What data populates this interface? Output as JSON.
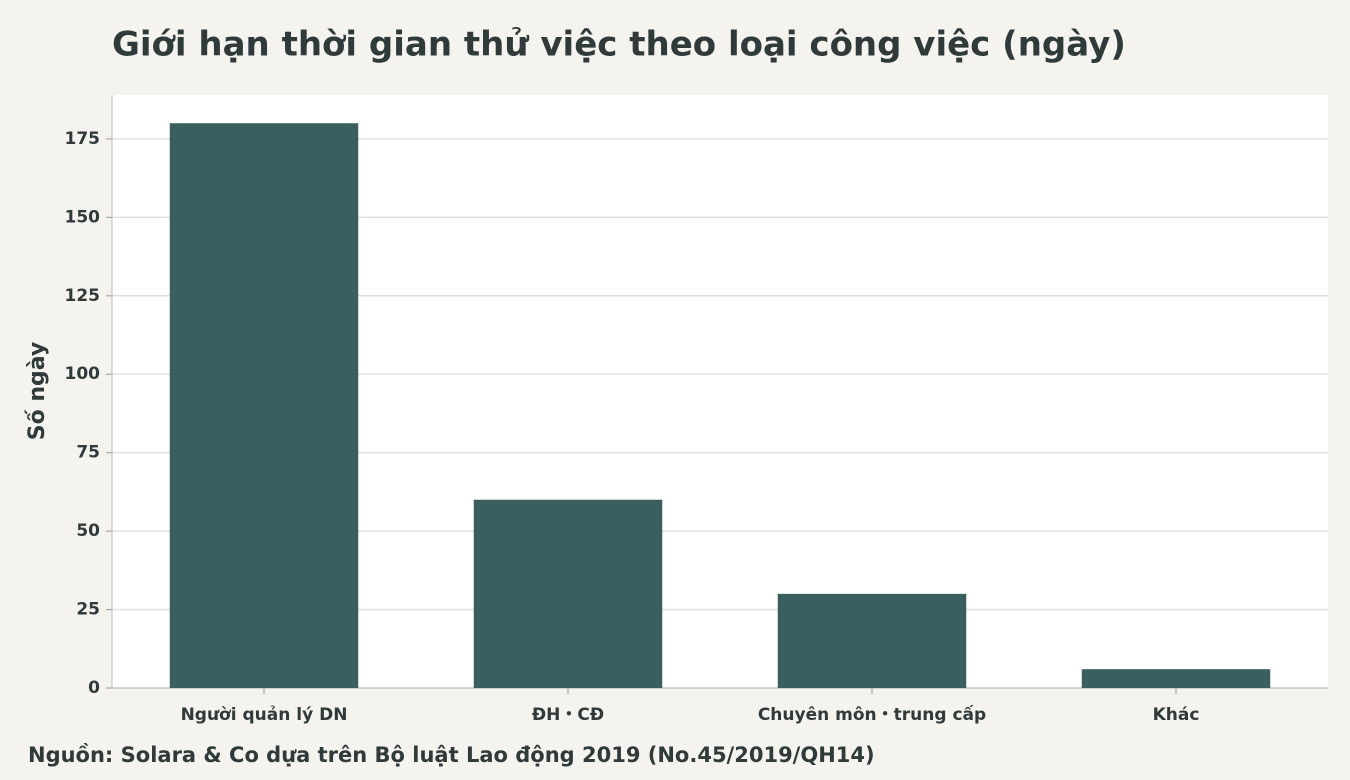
{
  "chart_data": {
    "type": "bar",
    "title": "Giới hạn thời gian thử việc theo loại công việc (ngày)",
    "y_label": "Số ngày",
    "source": "Nguồn: Solara & Co dựa trên Bộ luật Lao động 2019 (No.45/2019/QH14)",
    "categories": [
      "Người quản lý DN",
      "ĐH・CĐ",
      "Chuyên môn・trung cấp",
      "Khác"
    ],
    "values": [
      180,
      60,
      30,
      6
    ],
    "color": "#3a5f5f",
    "ylim": [
      0,
      189
    ],
    "yticks": [
      0,
      25,
      50,
      75,
      100,
      125,
      150,
      175
    ],
    "grid": true
  }
}
